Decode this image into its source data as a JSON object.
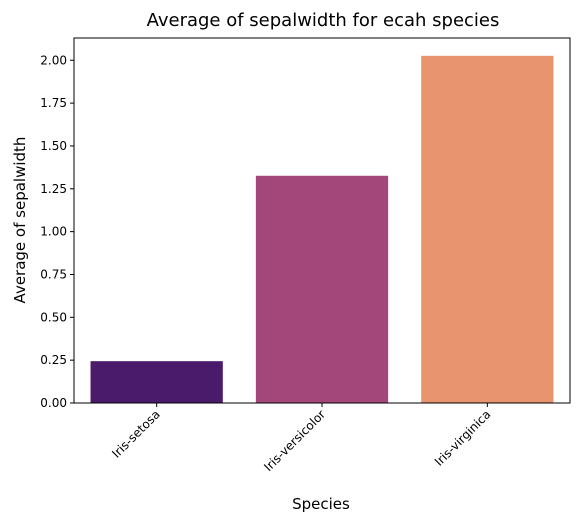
{
  "chart_data": {
    "type": "bar",
    "title": "Average of sepalwidth for ecah species",
    "xlabel": "Species",
    "ylabel": "Average of sepalwidth",
    "categories": [
      "Iris-setosa",
      "Iris-versicolor",
      "Iris-virginica"
    ],
    "values": [
      0.244,
      1.326,
      2.026
    ],
    "colors": [
      "#4a1a6b",
      "#a3467a",
      "#e8946f"
    ],
    "ylim": [
      0,
      2.13
    ],
    "yticks": [
      "0.00",
      "0.25",
      "0.50",
      "0.75",
      "1.00",
      "1.25",
      "1.50",
      "1.75",
      "2.00"
    ],
    "grid": false,
    "legend": "none"
  }
}
